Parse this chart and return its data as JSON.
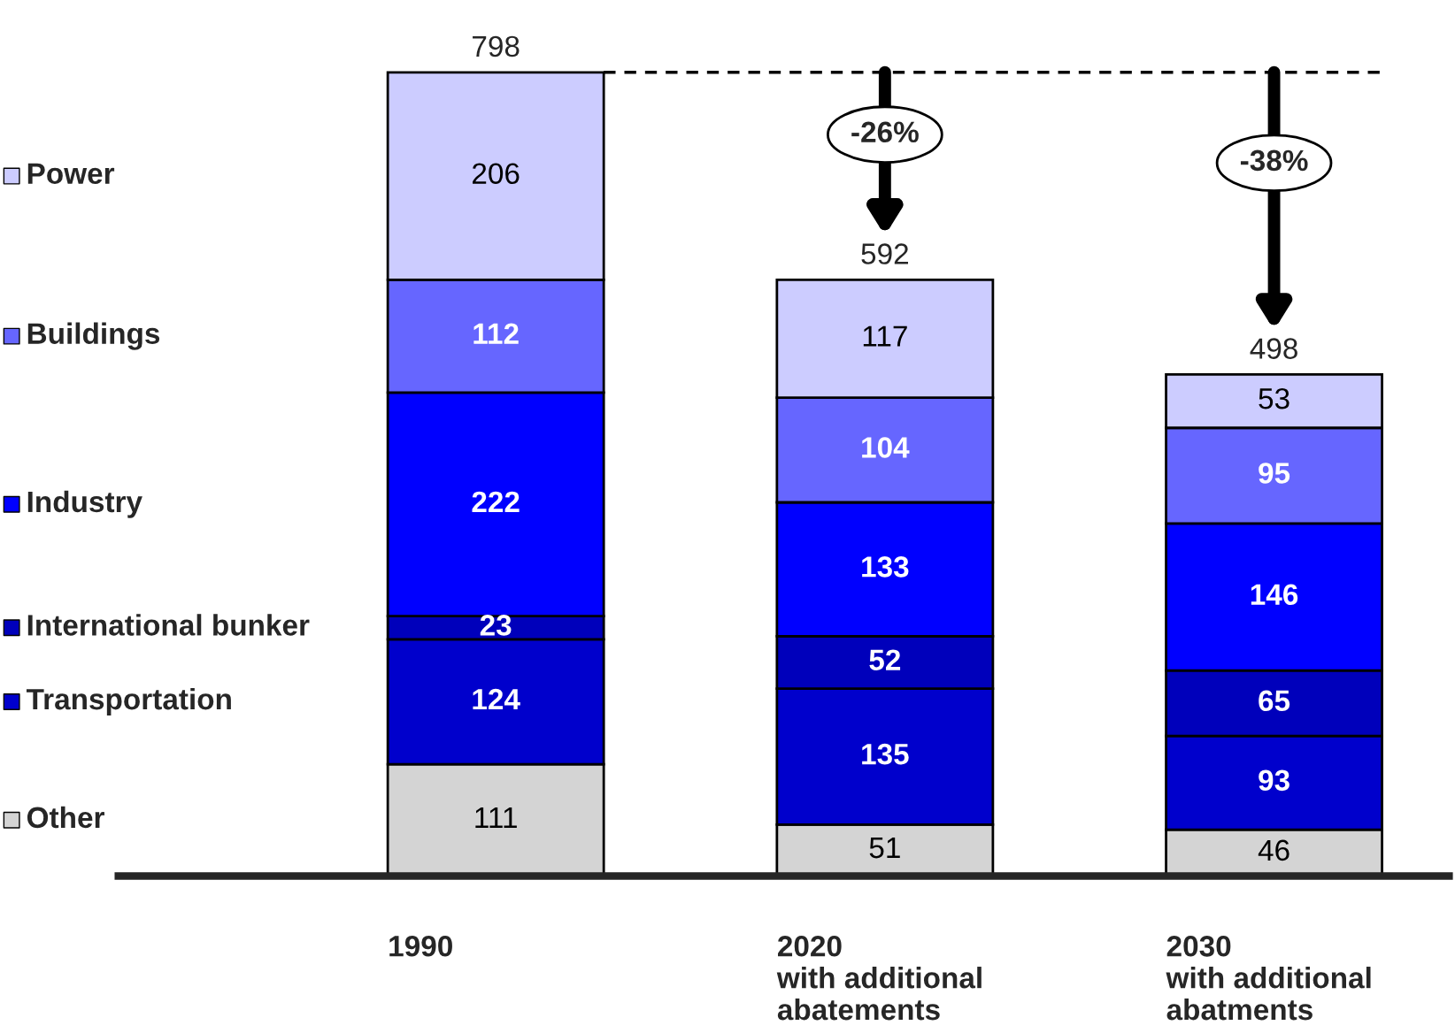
{
  "chart_data": {
    "type": "bar",
    "stacked": true,
    "categories": [
      "1990",
      "2020\nwith additional\nabatements",
      "2030\nwith additional\nabatments"
    ],
    "series": [
      {
        "name": "Other",
        "color": "#d4d4d4",
        "values": [
          111,
          51,
          46
        ]
      },
      {
        "name": "Transportation",
        "color": "#0000cc",
        "values": [
          124,
          135,
          93
        ]
      },
      {
        "name": "International bunker",
        "color": "#0000bb",
        "values": [
          23,
          52,
          65
        ]
      },
      {
        "name": "Industry",
        "color": "#0000ff",
        "values": [
          222,
          133,
          146
        ]
      },
      {
        "name": "Buildings",
        "color": "#6666ff",
        "values": [
          112,
          104,
          95
        ]
      },
      {
        "name": "Power",
        "color": "#ccccff",
        "values": [
          206,
          117,
          53
        ]
      }
    ],
    "data_labels": true,
    "totals": [
      "798",
      "592",
      "498"
    ],
    "ref_lines": [
      {
        "axis": "y",
        "value": 798,
        "line_style": "dashed",
        "color": "#000000"
      }
    ],
    "annotations": [
      "-26%",
      "-38%"
    ],
    "legend": "left",
    "grid": false
  }
}
